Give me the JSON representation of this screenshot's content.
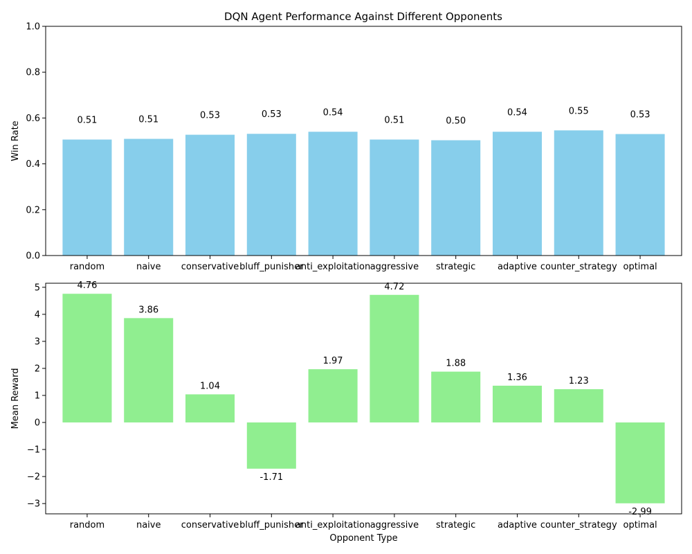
{
  "figure_title": "DQN Agent Performance Against Different Opponents",
  "colors": {
    "win_rate_bar": "#87CEEB",
    "reward_bar": "#90EE90",
    "axis": "#000000",
    "text": "#000000"
  },
  "chart_data": [
    {
      "type": "bar",
      "title": "DQN Agent Performance Against Different Opponents",
      "xlabel": "",
      "ylabel": "Win Rate",
      "ylim": [
        0,
        1
      ],
      "yticks": [
        "0.0",
        "0.2",
        "0.4",
        "0.6",
        "0.8",
        "1.0"
      ],
      "ytick_values": [
        0,
        0.2,
        0.4,
        0.6,
        0.8,
        1.0
      ],
      "categories": [
        "random",
        "naive",
        "conservative",
        "bluff_punisher",
        "anti_exploitation",
        "aggressive",
        "strategic",
        "adaptive",
        "counter_strategy",
        "optimal"
      ],
      "values": [
        0.506,
        0.509,
        0.527,
        0.531,
        0.54,
        0.506,
        0.503,
        0.54,
        0.546,
        0.53
      ],
      "data_labels": [
        "0.51",
        "0.51",
        "0.53",
        "0.53",
        "0.54",
        "0.51",
        "0.50",
        "0.54",
        "0.55",
        "0.53"
      ],
      "grid": false,
      "legend": "none"
    },
    {
      "type": "bar",
      "title": "",
      "xlabel": "Opponent Type",
      "ylabel": "Mean Reward",
      "ylim": [
        -3.38,
        5.15
      ],
      "yticks": [
        "−3",
        "−2",
        "−1",
        "0",
        "1",
        "2",
        "3",
        "4",
        "5"
      ],
      "ytick_values": [
        -3,
        -2,
        -1,
        0,
        1,
        2,
        3,
        4,
        5
      ],
      "categories": [
        "random",
        "naive",
        "conservative",
        "bluff_punisher",
        "anti_exploitation",
        "aggressive",
        "strategic",
        "adaptive",
        "counter_strategy",
        "optimal"
      ],
      "values": [
        4.76,
        3.86,
        1.04,
        -1.71,
        1.97,
        4.72,
        1.88,
        1.36,
        1.23,
        -2.99
      ],
      "data_labels": [
        "4.76",
        "3.86",
        "1.04",
        "-1.71",
        "1.97",
        "4.72",
        "1.88",
        "1.36",
        "1.23",
        "-2.99"
      ],
      "grid": false,
      "legend": "none"
    }
  ]
}
